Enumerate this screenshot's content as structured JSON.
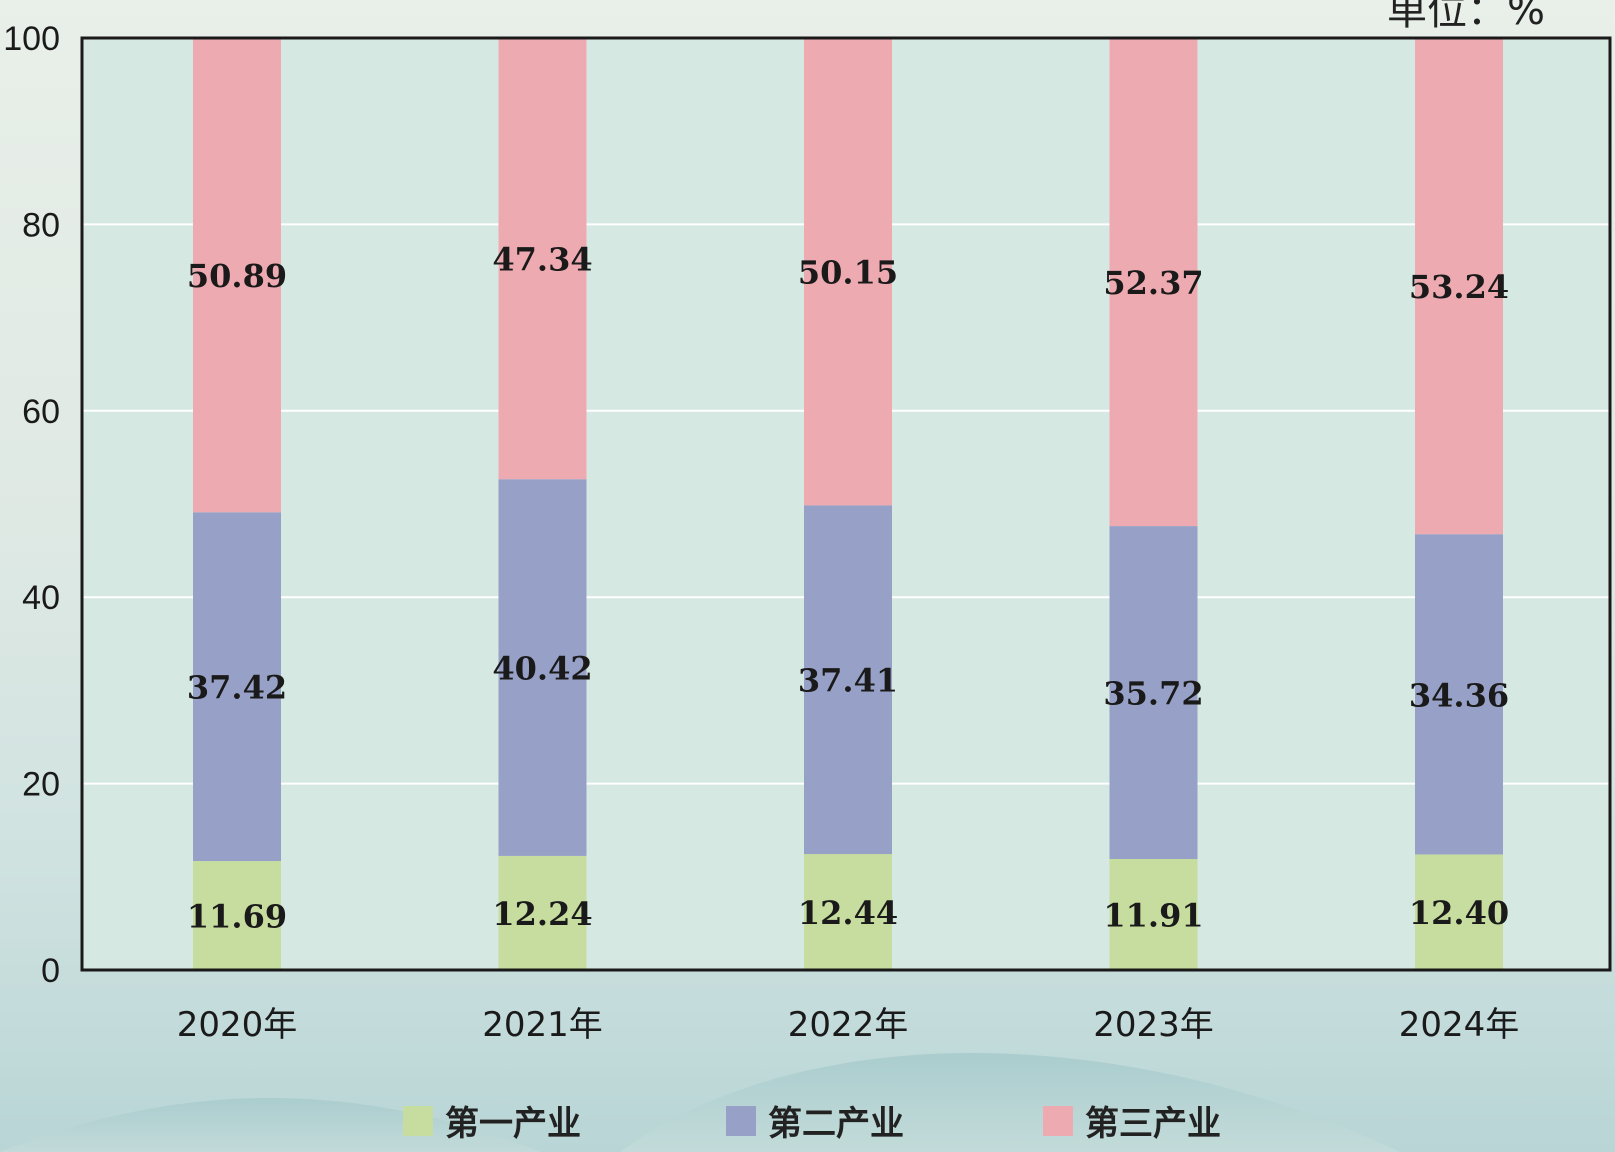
{
  "unit_text": "单位：%",
  "colors": {
    "plot_bg": "#d5e8e2",
    "grid": "#ffffff",
    "axis": "#1a1a1a",
    "primary": "#c7dc9f",
    "secondary": "#97a1c7",
    "tertiary": "#eeaab1"
  },
  "chart_data": {
    "type": "bar",
    "stacked": true,
    "categories": [
      "2020年",
      "2021年",
      "2022年",
      "2023年",
      "2024年"
    ],
    "series": [
      {
        "name": "第一产业",
        "color": "#c7dc9f",
        "values": [
          11.69,
          12.24,
          12.44,
          11.91,
          12.4
        ],
        "labels": [
          "11.69",
          "12.24",
          "12.44",
          "11.91",
          "12.40"
        ]
      },
      {
        "name": "第二产业",
        "color": "#97a1c7",
        "values": [
          37.42,
          40.42,
          37.41,
          35.72,
          34.36
        ],
        "labels": [
          "37.42",
          "40.42",
          "37.41",
          "35.72",
          "34.36"
        ]
      },
      {
        "name": "第三产业",
        "color": "#eeaab1",
        "values": [
          50.89,
          47.34,
          50.15,
          52.37,
          53.24
        ],
        "labels": [
          "50.89",
          "47.34",
          "50.15",
          "52.37",
          "53.24"
        ]
      }
    ],
    "ylim": [
      0,
      100
    ],
    "yticks": [
      "0",
      "20",
      "40",
      "60",
      "80",
      "100"
    ],
    "grid": true,
    "legend": "bottom"
  }
}
